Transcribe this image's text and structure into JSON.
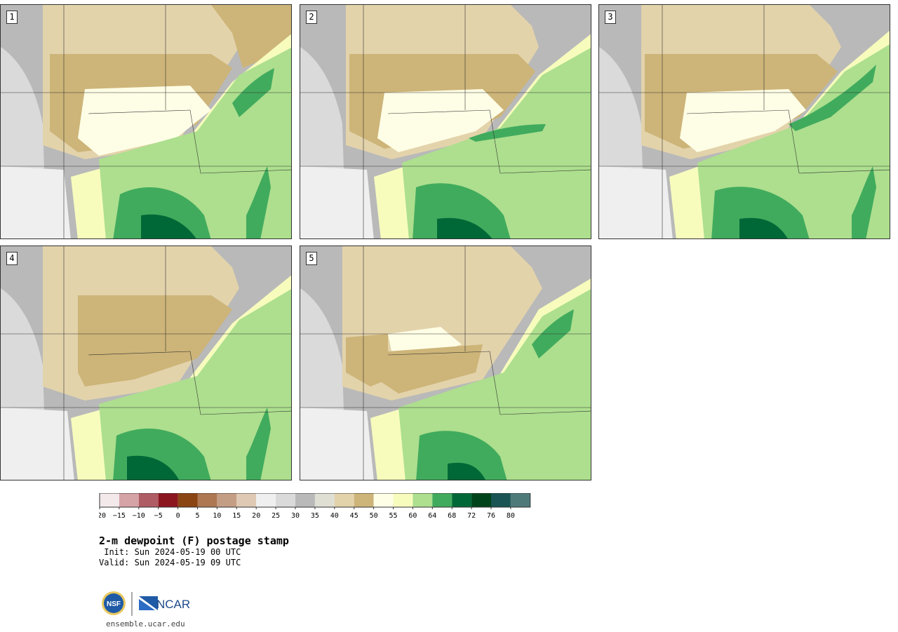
{
  "panels": [
    {
      "label": "1"
    },
    {
      "label": "2"
    },
    {
      "label": "3"
    },
    {
      "label": "4"
    },
    {
      "label": "5"
    }
  ],
  "colorbar": {
    "colors": [
      "#f3e9ea",
      "#d5a2a6",
      "#b05c64",
      "#8c1620",
      "#8b4513",
      "#ad7852",
      "#c49e84",
      "#e0c9b4",
      "#efefef",
      "#dadada",
      "#b9b9b9",
      "#dfdfd4",
      "#e3d3ab",
      "#cdb478",
      "#fefee6",
      "#f7fcbd",
      "#addf8e",
      "#41ab5d",
      "#006837",
      "#00441b",
      "#1b5454",
      "#4e7a7a"
    ],
    "ticks": [
      "-20",
      "-15",
      "-10",
      "-5",
      "0",
      "5",
      "10",
      "15",
      "20",
      "25",
      "30",
      "35",
      "40",
      "45",
      "50",
      "55",
      "60",
      "64",
      "68",
      "72",
      "76",
      "80"
    ]
  },
  "title": "2-m dewpoint (F) postage stamp",
  "init": " Init: Sun 2024-05-19 00 UTC",
  "valid": "Valid: Sun 2024-05-19 09 UTC",
  "logos": {
    "nsf": "NSF",
    "ncar": "NCAR"
  },
  "site": "ensemble.ucar.edu"
}
